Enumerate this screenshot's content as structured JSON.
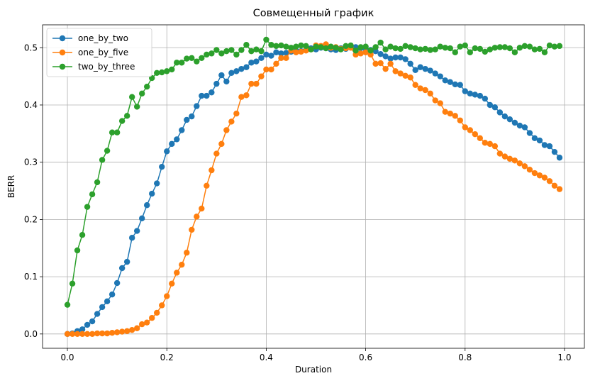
{
  "chart_data": {
    "type": "line",
    "title": "Совмещенный график",
    "xlabel": "Duration",
    "ylabel": "BERR",
    "xlim": [
      -0.05,
      1.04
    ],
    "ylim": [
      -0.025,
      0.54
    ],
    "xticks": [
      0.0,
      0.2,
      0.4,
      0.6,
      0.8,
      1.0
    ],
    "xtick_labels": [
      "0.0",
      "0.2",
      "0.4",
      "0.6",
      "0.8",
      "1.0"
    ],
    "yticks": [
      0.0,
      0.1,
      0.2,
      0.3,
      0.4,
      0.5
    ],
    "ytick_labels": [
      "0.0",
      "0.1",
      "0.2",
      "0.3",
      "0.4",
      "0.5"
    ],
    "grid": true,
    "legend": "top-left",
    "x": [
      0.0,
      0.01,
      0.02,
      0.03,
      0.04,
      0.05,
      0.06,
      0.07,
      0.08,
      0.09,
      0.1,
      0.11,
      0.12,
      0.13,
      0.14,
      0.15,
      0.16,
      0.17,
      0.18,
      0.19,
      0.2,
      0.21,
      0.22,
      0.23,
      0.24,
      0.25,
      0.26,
      0.27,
      0.28,
      0.29,
      0.3,
      0.31,
      0.32,
      0.33,
      0.34,
      0.35,
      0.36,
      0.37,
      0.38,
      0.39,
      0.4,
      0.41,
      0.42,
      0.43,
      0.44,
      0.45,
      0.46,
      0.47,
      0.48,
      0.49,
      0.5,
      0.51,
      0.52,
      0.53,
      0.54,
      0.55,
      0.56,
      0.57,
      0.58,
      0.59,
      0.6,
      0.61,
      0.62,
      0.63,
      0.64,
      0.65,
      0.66,
      0.67,
      0.68,
      0.69,
      0.7,
      0.71,
      0.72,
      0.73,
      0.74,
      0.75,
      0.76,
      0.77,
      0.78,
      0.79,
      0.8,
      0.81,
      0.82,
      0.83,
      0.84,
      0.85,
      0.86,
      0.87,
      0.88,
      0.89,
      0.9,
      0.91,
      0.92,
      0.93,
      0.94,
      0.95,
      0.96,
      0.97,
      0.98,
      0.99
    ],
    "series": [
      {
        "name": "one_by_two",
        "color": "#1f77b4",
        "values": [
          0.0,
          0.001,
          0.005,
          0.008,
          0.016,
          0.022,
          0.035,
          0.047,
          0.057,
          0.069,
          0.089,
          0.115,
          0.126,
          0.168,
          0.18,
          0.202,
          0.225,
          0.245,
          0.263,
          0.292,
          0.319,
          0.332,
          0.34,
          0.356,
          0.374,
          0.38,
          0.398,
          0.416,
          0.416,
          0.422,
          0.437,
          0.452,
          0.441,
          0.456,
          0.459,
          0.463,
          0.466,
          0.474,
          0.476,
          0.482,
          0.488,
          0.486,
          0.492,
          0.49,
          0.491,
          0.493,
          0.495,
          0.494,
          0.496,
          0.499,
          0.497,
          0.5,
          0.499,
          0.497,
          0.496,
          0.499,
          0.498,
          0.503,
          0.501,
          0.499,
          0.498,
          0.496,
          0.494,
          0.489,
          0.485,
          0.481,
          0.483,
          0.483,
          0.48,
          0.472,
          0.461,
          0.466,
          0.463,
          0.46,
          0.455,
          0.45,
          0.443,
          0.44,
          0.436,
          0.435,
          0.424,
          0.42,
          0.418,
          0.416,
          0.411,
          0.4,
          0.396,
          0.387,
          0.38,
          0.375,
          0.369,
          0.364,
          0.361,
          0.351,
          0.342,
          0.338,
          0.33,
          0.328,
          0.318,
          0.308
        ]
      },
      {
        "name": "one_by_five",
        "color": "#ff7f0e",
        "values": [
          0.0,
          0.0,
          0.0,
          0.0,
          0.0,
          0.0,
          0.001,
          0.001,
          0.001,
          0.002,
          0.003,
          0.004,
          0.005,
          0.007,
          0.01,
          0.017,
          0.02,
          0.028,
          0.037,
          0.05,
          0.066,
          0.088,
          0.107,
          0.121,
          0.142,
          0.182,
          0.205,
          0.219,
          0.259,
          0.286,
          0.315,
          0.332,
          0.356,
          0.371,
          0.385,
          0.414,
          0.417,
          0.437,
          0.437,
          0.45,
          0.462,
          0.462,
          0.472,
          0.482,
          0.482,
          0.495,
          0.492,
          0.493,
          0.495,
          0.497,
          0.504,
          0.503,
          0.506,
          0.5,
          0.501,
          0.498,
          0.499,
          0.5,
          0.488,
          0.49,
          0.492,
          0.488,
          0.472,
          0.473,
          0.463,
          0.472,
          0.459,
          0.455,
          0.451,
          0.448,
          0.435,
          0.429,
          0.426,
          0.42,
          0.408,
          0.403,
          0.388,
          0.385,
          0.381,
          0.373,
          0.361,
          0.356,
          0.349,
          0.342,
          0.334,
          0.332,
          0.328,
          0.315,
          0.31,
          0.306,
          0.303,
          0.298,
          0.293,
          0.287,
          0.281,
          0.277,
          0.273,
          0.267,
          0.259,
          0.253
        ]
      },
      {
        "name": "two_by_three",
        "color": "#2ca02c",
        "values": [
          0.051,
          0.088,
          0.146,
          0.173,
          0.222,
          0.244,
          0.265,
          0.304,
          0.32,
          0.352,
          0.352,
          0.372,
          0.381,
          0.414,
          0.397,
          0.42,
          0.432,
          0.447,
          0.456,
          0.457,
          0.459,
          0.462,
          0.474,
          0.474,
          0.481,
          0.482,
          0.476,
          0.482,
          0.488,
          0.49,
          0.496,
          0.49,
          0.494,
          0.496,
          0.488,
          0.496,
          0.505,
          0.494,
          0.497,
          0.494,
          0.514,
          0.505,
          0.503,
          0.504,
          0.502,
          0.5,
          0.502,
          0.504,
          0.503,
          0.497,
          0.502,
          0.501,
          0.499,
          0.502,
          0.5,
          0.497,
          0.503,
          0.504,
          0.495,
          0.501,
          0.502,
          0.495,
          0.501,
          0.509,
          0.497,
          0.502,
          0.499,
          0.498,
          0.503,
          0.501,
          0.499,
          0.497,
          0.498,
          0.496,
          0.497,
          0.502,
          0.5,
          0.499,
          0.492,
          0.502,
          0.504,
          0.492,
          0.499,
          0.498,
          0.493,
          0.497,
          0.5,
          0.501,
          0.501,
          0.499,
          0.492,
          0.5,
          0.503,
          0.502,
          0.497,
          0.498,
          0.492,
          0.504,
          0.502,
          0.503
        ]
      }
    ]
  }
}
